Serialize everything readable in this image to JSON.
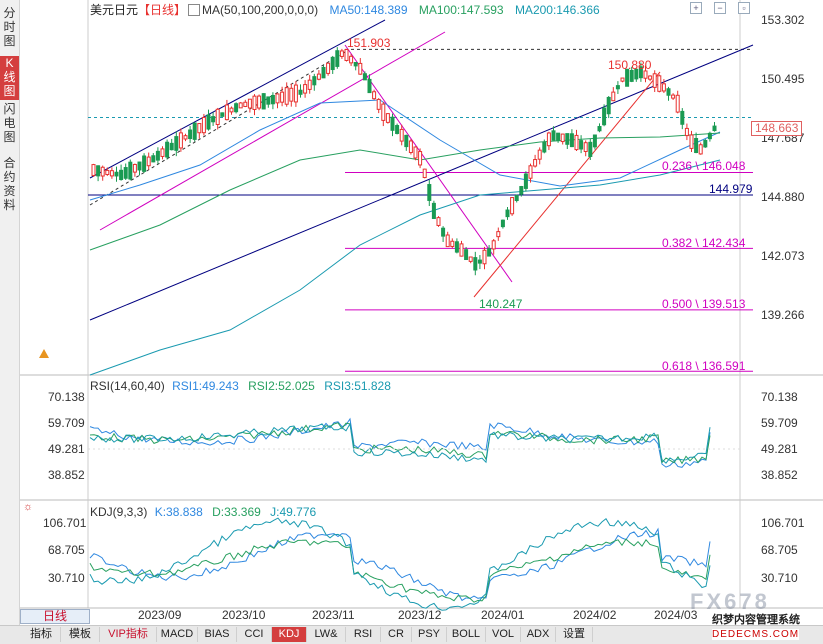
{
  "sidebar": {
    "tabs": [
      {
        "label": "分时图",
        "top": 6,
        "height": 44,
        "active": false
      },
      {
        "label": "K线图",
        "top": 62,
        "height": 44,
        "active": true
      },
      {
        "label": "闪电图",
        "top": 102,
        "height": 44,
        "active": false
      },
      {
        "label": "合约资料",
        "top": 156,
        "height": 58,
        "active": false
      }
    ]
  },
  "header": {
    "symbol": "美元日元",
    "period": "【日线】",
    "ma_label": "MA(50,100,200,0,0,0)",
    "ma50": "MA50:148.389",
    "ma100": "MA100:147.593",
    "ma200": "MA200:146.366"
  },
  "price_axis": {
    "ticks": [
      "153.302",
      "150.495",
      "147.687",
      "144.880",
      "142.073",
      "139.266"
    ],
    "current": "148.663"
  },
  "annotations": {
    "high": "151.903",
    "high2": "150.880",
    "low": "140.247",
    "level_144979": "144.979",
    "fib_0236": "0.236 \\ 146.048",
    "fib_0382": "0.382 \\ 142.434",
    "fib_0500": "0.500 \\ 139.513",
    "fib_0618": "0.618 \\ 136.591"
  },
  "rsi": {
    "title": "RSI(14,60,40)",
    "rsi1": "RSI1:49.243",
    "rsi2": "RSI2:52.025",
    "rsi3": "RSI3:51.828",
    "ticks": [
      "70.138",
      "59.709",
      "49.281",
      "38.852"
    ]
  },
  "kdj": {
    "title": "KDJ(9,3,3)",
    "k": "K:38.838",
    "d": "D:33.369",
    "j": "J:49.776",
    "ticks": [
      "106.701",
      "68.705",
      "30.710"
    ]
  },
  "x_axis": {
    "labels": [
      "2023/09",
      "2023/10",
      "2023/11",
      "2023/12",
      "2024/01",
      "2024/02",
      "2024/03"
    ]
  },
  "bottom_tabs": [
    "指标",
    "模板",
    "VIP指标",
    "MACD",
    "BIAS",
    "CCI",
    "KDJ",
    "LW&",
    "RSI",
    "CR",
    "PSY",
    "BOLL",
    "VOL",
    "ADX",
    "设置"
  ],
  "period_button": "日线",
  "watermark": {
    "logo": "FX678",
    "text": "织梦内容管理系统",
    "url": "DEDECMS.COM"
  },
  "colors": {
    "up": "#e8312f",
    "down": "#1a9a52",
    "fib": "#d000c0",
    "channel": "#000080",
    "ma50": "#2f88e0",
    "ma100": "#28a060",
    "ma200": "#1a9ab0"
  }
}
